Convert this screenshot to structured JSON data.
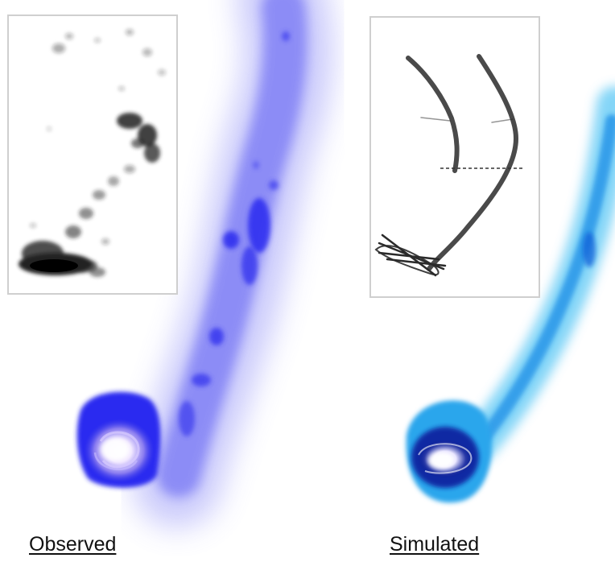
{
  "panels": {
    "observed": {
      "label": "Observed",
      "tail_color": "#3344ee",
      "inset_color": "#111111"
    },
    "simulated": {
      "label": "Simulated",
      "tail_color": "#1a9be8",
      "inset_color": "#222222"
    }
  },
  "colors": {
    "background": "#ffffff",
    "inset_border": "#cfcfcf",
    "galaxy_core": "#f2eaff"
  }
}
